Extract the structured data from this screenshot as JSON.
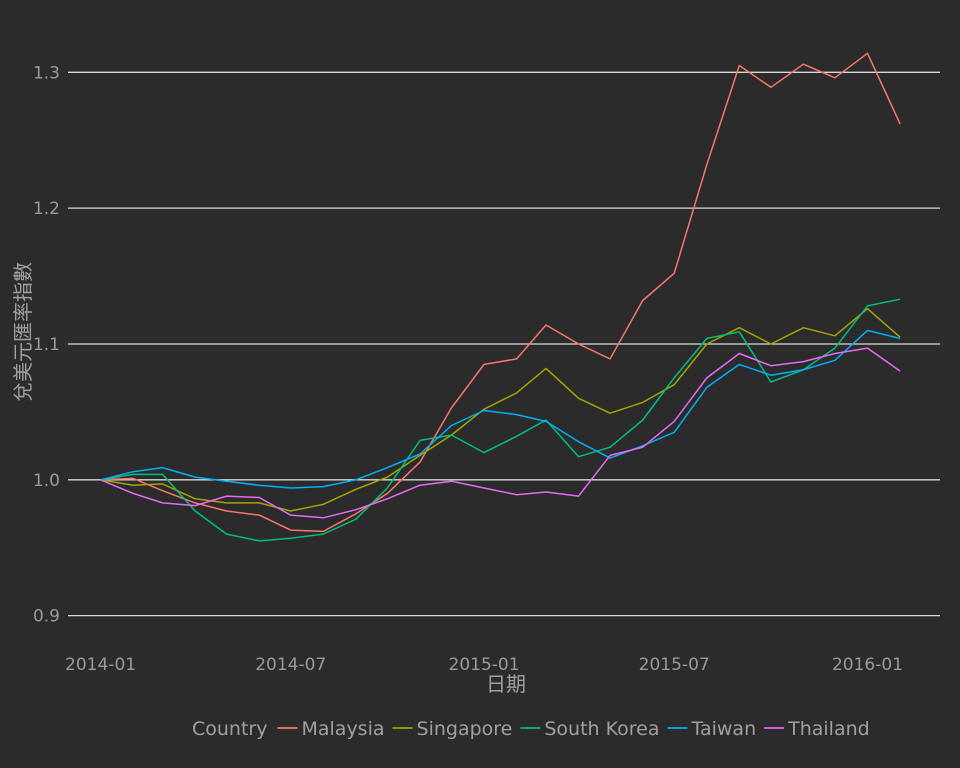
{
  "chart_data": {
    "type": "line",
    "title": "",
    "xlabel": "日期",
    "ylabel": "兌美元匯率指數",
    "ylim": [
      0.885,
      1.34
    ],
    "xlim": [
      "2013-12-01",
      "2016-03-10"
    ],
    "yticks": [
      0.9,
      1.0,
      1.1,
      1.2,
      1.3
    ],
    "ytick_labels": [
      "0.9",
      "1.0",
      "1.1",
      "1.2",
      "1.3"
    ],
    "xticks": [
      "2014-01-01",
      "2014-07-01",
      "2015-01-01",
      "2015-07-01",
      "2016-01-01"
    ],
    "xtick_labels": [
      "2014-01",
      "2014-07",
      "2015-01",
      "2015-07",
      "2016-01"
    ],
    "grid": true,
    "legend": {
      "title": "Country",
      "placement": "bottom"
    },
    "x": [
      "2014-01",
      "2014-02",
      "2014-03",
      "2014-04",
      "2014-05",
      "2014-06",
      "2014-07",
      "2014-08",
      "2014-09",
      "2014-10",
      "2014-11",
      "2014-12",
      "2015-01",
      "2015-02",
      "2015-03",
      "2015-04",
      "2015-05",
      "2015-06",
      "2015-07",
      "2015-08",
      "2015-09",
      "2015-10",
      "2015-11",
      "2015-12",
      "2016-01",
      "2016-02"
    ],
    "series": [
      {
        "name": "Malaysia",
        "color": "#f8766d",
        "values": [
          1.0,
          1.001,
          0.992,
          0.983,
          0.977,
          0.974,
          0.963,
          0.962,
          0.975,
          0.99,
          1.013,
          1.053,
          1.085,
          1.089,
          1.114,
          1.1,
          1.089,
          1.132,
          1.152,
          1.232,
          1.305,
          1.289,
          1.306,
          1.296,
          1.314,
          1.262
        ]
      },
      {
        "name": "Singapore",
        "color": "#a3a500",
        "values": [
          1.0,
          0.996,
          0.997,
          0.986,
          0.983,
          0.983,
          0.977,
          0.982,
          0.993,
          1.002,
          1.018,
          1.033,
          1.052,
          1.064,
          1.082,
          1.06,
          1.049,
          1.057,
          1.07,
          1.1,
          1.112,
          1.1,
          1.112,
          1.106,
          1.126,
          1.105
        ]
      },
      {
        "name": "South Korea",
        "color": "#00bf7d",
        "values": [
          1.0,
          1.004,
          1.004,
          0.977,
          0.96,
          0.955,
          0.957,
          0.96,
          0.971,
          0.994,
          1.029,
          1.033,
          1.02,
          1.032,
          1.044,
          1.017,
          1.024,
          1.044,
          1.075,
          1.104,
          1.109,
          1.072,
          1.081,
          1.097,
          1.128,
          1.133
        ]
      },
      {
        "name": "Taiwan",
        "color": "#00b0f6",
        "values": [
          1.0,
          1.006,
          1.009,
          1.002,
          0.999,
          0.996,
          0.994,
          0.995,
          1.0,
          1.009,
          1.019,
          1.04,
          1.051,
          1.048,
          1.043,
          1.028,
          1.016,
          1.025,
          1.035,
          1.068,
          1.085,
          1.077,
          1.081,
          1.088,
          1.11,
          1.104
        ]
      },
      {
        "name": "Thailand",
        "color": "#e76bf3",
        "values": [
          1.0,
          0.99,
          0.983,
          0.981,
          0.988,
          0.987,
          0.974,
          0.972,
          0.978,
          0.986,
          0.996,
          0.999,
          0.994,
          0.989,
          0.991,
          0.988,
          1.018,
          1.024,
          1.043,
          1.075,
          1.093,
          1.084,
          1.087,
          1.093,
          1.097,
          1.08
        ]
      }
    ]
  }
}
